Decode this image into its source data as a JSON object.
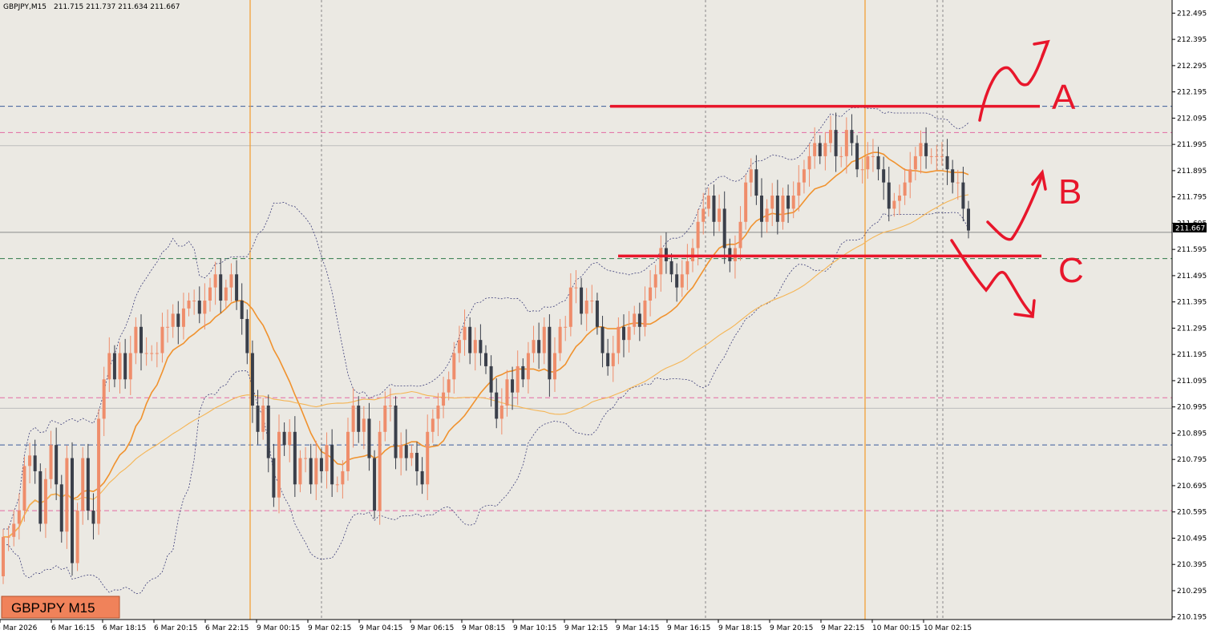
{
  "header": {
    "symbol": "GBPJPY,M15",
    "ohlc": "211.715 211.737 211.634 211.667"
  },
  "badge": {
    "label": "GBPJPY M15"
  },
  "current_price_label": "211.667",
  "annotations": {
    "a": "A",
    "b": "B",
    "c": "C"
  },
  "colors": {
    "background": "#ebe9e3",
    "bull": "#ef8d6b",
    "bear": "#3a3f4a",
    "ma_fast": "#f0922e",
    "ma_slow": "#f5b555",
    "bands": "#3e3f7a",
    "marker": "#e8162b",
    "session_line": "#f39a2a",
    "badge_bg": "#f0825a"
  },
  "chart_data": {
    "type": "candlestick",
    "symbol": "GBPJPY",
    "timeframe": "M15",
    "ylim": [
      210.185,
      212.545
    ],
    "y_ticks": [
      "212.495",
      "212.395",
      "212.295",
      "212.195",
      "212.095",
      "211.995",
      "211.895",
      "211.795",
      "211.695",
      "211.595",
      "211.495",
      "211.395",
      "211.295",
      "211.195",
      "211.095",
      "210.995",
      "210.895",
      "210.795",
      "210.695",
      "210.595",
      "210.495",
      "210.395",
      "210.295",
      "210.195"
    ],
    "x_ticks": [
      "6 Mar 2026",
      "6 Mar 16:15",
      "6 Mar 18:15",
      "6 Mar 20:15",
      "6 Mar 22:15",
      "9 Mar 00:15",
      "9 Mar 02:15",
      "9 Mar 04:15",
      "9 Mar 06:15",
      "9 Mar 08:15",
      "9 Mar 10:15",
      "9 Mar 12:15",
      "9 Mar 14:15",
      "9 Mar 16:15",
      "9 Mar 18:15",
      "9 Mar 20:15",
      "9 Mar 22:15",
      "10 Mar 00:15",
      "10 Mar 02:15"
    ],
    "levels": [
      {
        "name": "A",
        "value": 212.14
      },
      {
        "name": "C",
        "value": 211.57
      }
    ],
    "hlines": [
      212.14,
      212.04,
      211.99,
      211.66,
      211.56,
      211.03,
      210.99,
      210.85,
      210.6
    ],
    "series": [
      {
        "name": "open",
        "values": [
          210.35,
          210.5,
          210.5,
          210.55,
          210.6,
          210.77,
          210.81,
          210.75,
          210.55,
          210.72,
          210.85,
          210.7,
          210.52,
          210.8,
          210.4,
          210.6,
          210.8,
          210.6,
          210.55,
          210.95,
          211.1,
          211.2,
          211.1,
          211.2,
          211.1,
          211.2,
          211.3,
          211.2,
          211.2,
          211.2,
          211.2,
          211.3,
          211.3,
          211.35,
          211.3,
          211.37,
          211.4,
          211.4,
          211.35,
          211.4,
          211.45,
          211.5,
          211.4,
          211.45,
          211.5,
          211.4,
          211.33,
          211.2,
          211.0,
          210.9,
          211.0,
          210.8,
          210.65,
          210.9,
          210.85,
          210.9,
          210.7,
          210.8,
          210.8,
          210.7,
          210.8,
          210.75,
          210.85,
          210.7,
          210.7,
          210.75,
          210.9,
          211.0,
          210.9,
          210.95,
          210.8,
          210.6,
          210.9,
          211.0,
          211.0,
          210.8,
          210.85,
          210.8,
          210.82,
          210.75,
          210.7,
          210.9,
          210.95,
          211.0,
          211.05,
          211.1,
          211.2,
          211.25,
          211.3,
          211.2,
          211.25,
          211.2,
          211.15,
          211.05,
          210.95,
          211.0,
          211.1,
          211.05,
          211.15,
          211.1,
          211.2,
          211.25,
          211.2,
          211.3,
          211.1,
          211.2,
          211.3,
          211.3,
          211.45,
          211.45,
          211.35,
          211.4,
          211.4,
          211.3,
          211.2,
          211.15,
          211.2,
          211.3,
          211.25,
          211.3,
          211.35,
          211.3,
          211.4,
          211.45,
          211.5,
          211.6,
          211.55,
          211.5,
          211.45,
          211.5,
          211.55,
          211.6,
          211.7,
          211.75,
          211.8,
          211.7,
          211.75,
          211.6,
          211.55,
          211.6,
          211.7,
          211.85,
          211.9,
          211.8,
          211.7,
          211.75,
          211.8,
          211.7,
          211.8,
          211.75,
          211.8,
          211.85,
          211.9,
          211.95,
          212.0,
          211.95,
          212.0,
          212.05,
          211.95,
          211.95,
          212.05,
          212.0,
          211.9,
          211.9,
          211.95,
          211.95,
          211.9,
          211.85,
          211.75,
          211.78,
          211.8,
          211.85,
          211.9,
          211.95,
          212.0,
          211.95,
          211.95,
          211.95,
          211.95,
          211.9,
          211.85,
          211.85,
          211.75
        ]
      },
      {
        "name": "close",
        "values": [
          210.5,
          210.5,
          210.55,
          210.6,
          210.77,
          210.81,
          210.75,
          210.55,
          210.72,
          210.85,
          210.7,
          210.52,
          210.8,
          210.4,
          210.6,
          210.8,
          210.6,
          210.55,
          210.95,
          211.1,
          211.2,
          211.1,
          211.2,
          211.1,
          211.2,
          211.3,
          211.2,
          211.2,
          211.2,
          211.2,
          211.3,
          211.3,
          211.35,
          211.3,
          211.37,
          211.4,
          211.4,
          211.35,
          211.4,
          211.45,
          211.5,
          211.4,
          211.45,
          211.5,
          211.4,
          211.33,
          211.2,
          211.0,
          210.9,
          211.0,
          210.8,
          210.65,
          210.9,
          210.85,
          210.9,
          210.7,
          210.8,
          210.8,
          210.7,
          210.8,
          210.75,
          210.85,
          210.7,
          210.7,
          210.75,
          210.9,
          211.0,
          210.9,
          210.95,
          210.8,
          210.6,
          210.9,
          211.0,
          211.0,
          210.8,
          210.85,
          210.8,
          210.82,
          210.75,
          210.7,
          210.9,
          210.95,
          211.0,
          211.05,
          211.1,
          211.2,
          211.25,
          211.3,
          211.2,
          211.25,
          211.2,
          211.15,
          211.05,
          210.95,
          211.0,
          211.1,
          211.05,
          211.15,
          211.1,
          211.2,
          211.25,
          211.2,
          211.3,
          211.1,
          211.2,
          211.3,
          211.3,
          211.45,
          211.45,
          211.35,
          211.4,
          211.4,
          211.3,
          211.2,
          211.15,
          211.2,
          211.3,
          211.25,
          211.3,
          211.35,
          211.3,
          211.4,
          211.45,
          211.5,
          211.6,
          211.55,
          211.5,
          211.45,
          211.5,
          211.55,
          211.6,
          211.7,
          211.75,
          211.8,
          211.7,
          211.75,
          211.6,
          211.55,
          211.6,
          211.7,
          211.85,
          211.9,
          211.8,
          211.7,
          211.75,
          211.8,
          211.7,
          211.8,
          211.75,
          211.8,
          211.85,
          211.9,
          211.95,
          212.0,
          211.95,
          212.0,
          212.05,
          211.95,
          211.95,
          212.05,
          212.0,
          211.9,
          211.9,
          211.95,
          211.95,
          211.9,
          211.85,
          211.75,
          211.78,
          211.8,
          211.85,
          211.9,
          211.95,
          212.0,
          211.95,
          211.95,
          211.95,
          211.95,
          211.9,
          211.85,
          211.85,
          211.75,
          211.667
        ]
      }
    ]
  }
}
